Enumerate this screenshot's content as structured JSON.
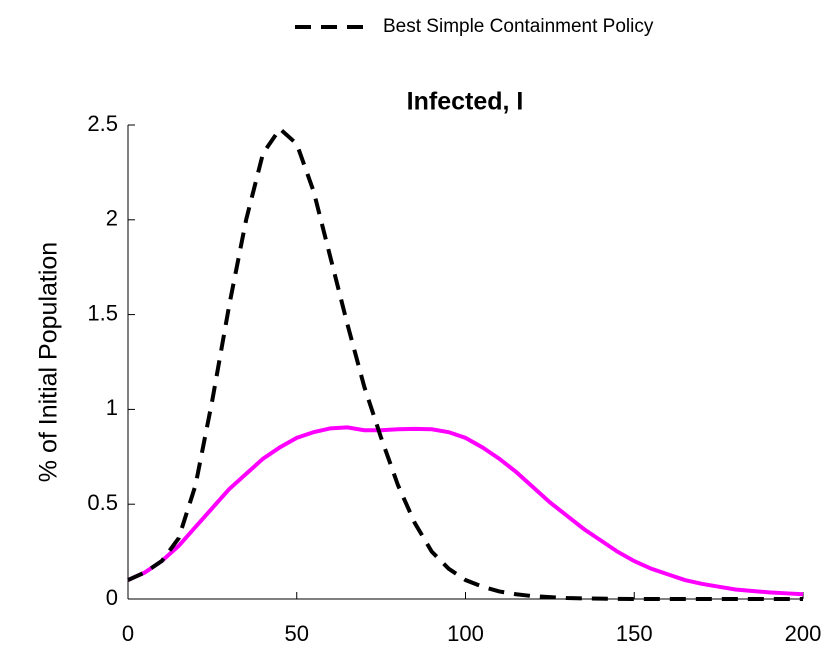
{
  "chart_data": {
    "type": "line",
    "title": "Infected, I",
    "ylabel": "% of Initial Population",
    "x": [
      0,
      5,
      10,
      15,
      20,
      25,
      30,
      35,
      40,
      45,
      50,
      55,
      60,
      65,
      70,
      75,
      80,
      85,
      90,
      95,
      100,
      105,
      110,
      115,
      120,
      125,
      130,
      135,
      140,
      145,
      150,
      155,
      160,
      165,
      170,
      175,
      180,
      185,
      190,
      195,
      200
    ],
    "series": [
      {
        "name": "Best Simple Containment Policy",
        "color": "#000000",
        "dash": true,
        "values": [
          0.1,
          0.14,
          0.2,
          0.32,
          0.6,
          1.05,
          1.55,
          2.0,
          2.35,
          2.48,
          2.4,
          2.15,
          1.8,
          1.45,
          1.12,
          0.85,
          0.6,
          0.4,
          0.25,
          0.16,
          0.1,
          0.065,
          0.04,
          0.025,
          0.015,
          0.01,
          0.005,
          0.003,
          0.002,
          0.001,
          0,
          0,
          0,
          0,
          0,
          0,
          0,
          0,
          0,
          0,
          0
        ]
      },
      {
        "color": "#ff00ff",
        "dash": false,
        "values": [
          0.1,
          0.14,
          0.2,
          0.28,
          0.38,
          0.48,
          0.58,
          0.66,
          0.74,
          0.8,
          0.85,
          0.88,
          0.9,
          0.905,
          0.89,
          0.89,
          0.895,
          0.897,
          0.895,
          0.88,
          0.85,
          0.8,
          0.74,
          0.67,
          0.59,
          0.51,
          0.44,
          0.37,
          0.31,
          0.25,
          0.2,
          0.16,
          0.13,
          0.1,
          0.08,
          0.065,
          0.05,
          0.042,
          0.035,
          0.03,
          0.025
        ]
      }
    ],
    "xlim": [
      0,
      200
    ],
    "xticks": [
      0,
      50,
      100,
      150,
      200
    ],
    "ylim": [
      0,
      2.5
    ],
    "yticks": [
      0,
      0.5,
      1,
      1.5,
      2,
      2.5
    ],
    "grid": false,
    "legend": "top"
  }
}
